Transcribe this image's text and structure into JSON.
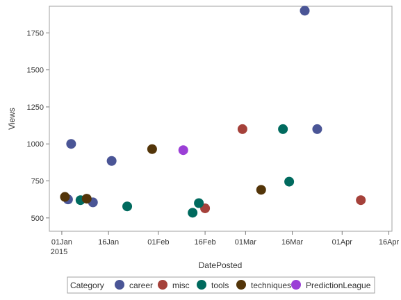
{
  "chart_data": {
    "type": "scatter",
    "xlabel": "DatePosted",
    "ylabel": "Views",
    "x_axis": {
      "type": "date",
      "min": "2014-12-28",
      "max": "2015-04-17",
      "ticks": [
        "2015-01-01",
        "2015-01-16",
        "2015-02-01",
        "2015-02-16",
        "2015-03-01",
        "2015-03-16",
        "2015-04-01",
        "2015-04-16"
      ],
      "tick_labels": [
        "01Jan",
        "16Jan",
        "01Feb",
        "16Feb",
        "01Mar",
        "16Mar",
        "01Apr",
        "16Apr"
      ],
      "year_label": "2015"
    },
    "y_axis": {
      "min": 410,
      "max": 1930,
      "ticks": [
        500,
        750,
        1000,
        1250,
        1500,
        1750
      ],
      "tick_labels": [
        "500",
        "750",
        "1000",
        "1250",
        "1500",
        "1750"
      ]
    },
    "grid": false,
    "legend": {
      "title": "Category",
      "position": "bottom"
    },
    "series": [
      {
        "name": "career",
        "color": "#4a5596",
        "points": [
          {
            "x": "2015-01-03",
            "y": 625
          },
          {
            "x": "2015-01-04",
            "y": 1000
          },
          {
            "x": "2015-01-11",
            "y": 605
          },
          {
            "x": "2015-01-17",
            "y": 885
          },
          {
            "x": "2015-03-20",
            "y": 1900
          },
          {
            "x": "2015-03-24",
            "y": 1100
          }
        ]
      },
      {
        "name": "misc",
        "color": "#a5413a",
        "points": [
          {
            "x": "2015-02-16",
            "y": 565
          },
          {
            "x": "2015-02-28",
            "y": 1100
          },
          {
            "x": "2015-04-07",
            "y": 620
          }
        ]
      },
      {
        "name": "tools",
        "color": "#006a5e",
        "points": [
          {
            "x": "2015-01-07",
            "y": 620
          },
          {
            "x": "2015-01-22",
            "y": 578
          },
          {
            "x": "2015-02-12",
            "y": 535
          },
          {
            "x": "2015-02-14",
            "y": 600
          },
          {
            "x": "2015-03-13",
            "y": 1100
          },
          {
            "x": "2015-03-15",
            "y": 745
          }
        ]
      },
      {
        "name": "techniques",
        "color": "#533509",
        "points": [
          {
            "x": "2015-01-02",
            "y": 642
          },
          {
            "x": "2015-01-09",
            "y": 630
          },
          {
            "x": "2015-01-30",
            "y": 965
          },
          {
            "x": "2015-03-06",
            "y": 690
          }
        ]
      },
      {
        "name": "PredictionLeague",
        "color": "#9b3fd6",
        "points": [
          {
            "x": "2015-02-09",
            "y": 958
          }
        ]
      }
    ]
  }
}
